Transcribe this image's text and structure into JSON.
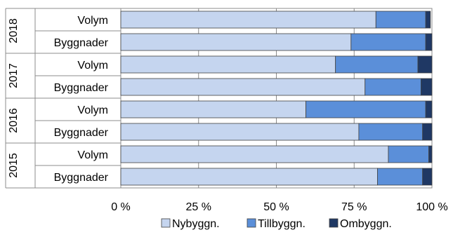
{
  "chart_data": {
    "type": "bar",
    "orientation": "horizontal",
    "stacked": "percent",
    "groups": [
      {
        "label": "2018",
        "rows": [
          {
            "label": "Volym",
            "values": [
              82,
              16,
              1.5
            ]
          },
          {
            "label": "Byggnader",
            "values": [
              74,
              24,
              2
            ]
          }
        ]
      },
      {
        "label": "2017",
        "rows": [
          {
            "label": "Volym",
            "values": [
              69,
              26.5,
              4.5
            ]
          },
          {
            "label": "Byggnader",
            "values": [
              78.5,
              18,
              3.5
            ]
          }
        ]
      },
      {
        "label": "2016",
        "rows": [
          {
            "label": "Volym",
            "values": [
              59.5,
              38.5,
              2
            ]
          },
          {
            "label": "Byggnader",
            "values": [
              76.5,
              20.5,
              3
            ]
          }
        ]
      },
      {
        "label": "2015",
        "rows": [
          {
            "label": "Volym",
            "values": [
              86,
              13,
              1
            ]
          },
          {
            "label": "Byggnader",
            "values": [
              82.5,
              14.5,
              3
            ]
          }
        ]
      }
    ],
    "series": [
      {
        "name": "Nybyggn.",
        "color": "#c5d5ef"
      },
      {
        "name": "Tillbyggn.",
        "color": "#5b8fd9"
      },
      {
        "name": "Ombyggn.",
        "color": "#1f3864"
      }
    ],
    "x_ticks": [
      0,
      25,
      50,
      75,
      100
    ],
    "x_tick_labels": [
      "0 %",
      "25 %",
      "50 %",
      "75 %",
      "100 %"
    ],
    "xlim": [
      0,
      100
    ],
    "grid": true,
    "legend": "bottom"
  }
}
